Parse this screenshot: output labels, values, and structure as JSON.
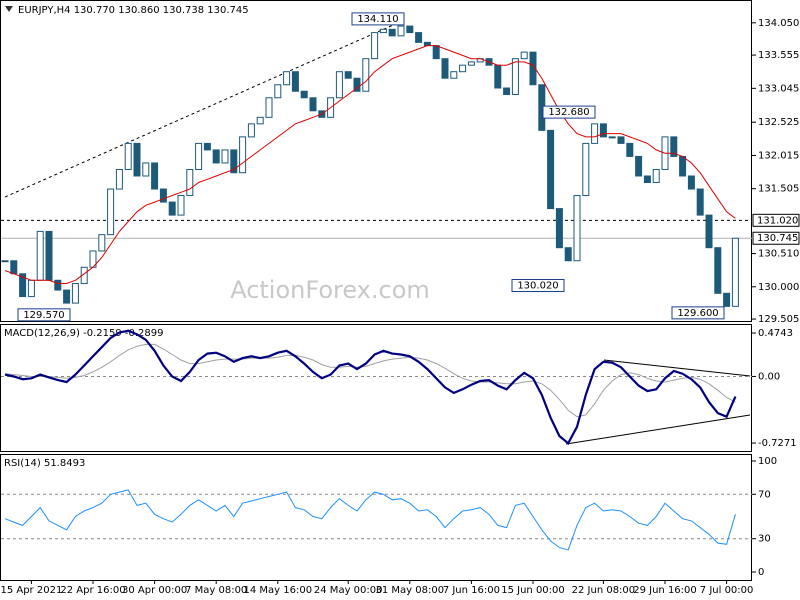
{
  "chart_data": [
    {
      "type": "candlestick",
      "title": "EURJPY,H4  130.770 130.860 130.738 130.745",
      "watermark": "ActionForex.com",
      "color": "#1d5a7a",
      "values": [
        130.4,
        130.2,
        129.85,
        130.1,
        130.85,
        130.1,
        129.95,
        129.75,
        130.05,
        130.3,
        130.55,
        130.8,
        131.5,
        131.8,
        132.2,
        131.7,
        131.9,
        131.5,
        131.3,
        131.1,
        131.4,
        131.8,
        132.2,
        132.1,
        131.9,
        132.1,
        131.75,
        132.3,
        132.5,
        132.6,
        132.9,
        133.1,
        133.3,
        133.0,
        132.9,
        132.7,
        132.6,
        132.9,
        133.3,
        133.2,
        133.0,
        133.5,
        133.9,
        133.95,
        133.85,
        134.0,
        133.9,
        133.75,
        133.7,
        133.5,
        133.2,
        133.3,
        133.4,
        133.45,
        133.5,
        133.4,
        133.05,
        132.95,
        133.5,
        133.6,
        133.1,
        132.4,
        131.2,
        130.6,
        130.4,
        131.4,
        132.2,
        132.5,
        132.3,
        132.3,
        132.2,
        132.0,
        131.7,
        131.6,
        131.8,
        132.3,
        132.0,
        131.7,
        131.5,
        131.1,
        130.6,
        129.9,
        129.7,
        130.745
      ],
      "ma_color": "#e00000",
      "ma_values": [
        130.25,
        130.2,
        130.15,
        130.1,
        130.1,
        130.1,
        130.05,
        130.05,
        130.1,
        130.2,
        130.3,
        130.45,
        130.65,
        130.85,
        131.0,
        131.15,
        131.25,
        131.3,
        131.35,
        131.4,
        131.45,
        131.5,
        131.6,
        131.65,
        131.7,
        131.75,
        131.8,
        131.9,
        132.0,
        132.1,
        132.2,
        132.3,
        132.4,
        132.5,
        132.55,
        132.6,
        132.65,
        132.75,
        132.85,
        132.95,
        133.05,
        133.15,
        133.3,
        133.4,
        133.5,
        133.55,
        133.6,
        133.65,
        133.7,
        133.7,
        133.65,
        133.6,
        133.55,
        133.5,
        133.5,
        133.45,
        133.4,
        133.4,
        133.45,
        133.45,
        133.4,
        133.2,
        132.95,
        132.7,
        132.5,
        132.35,
        132.3,
        132.3,
        132.35,
        132.35,
        132.35,
        132.3,
        132.25,
        132.2,
        132.1,
        132.05,
        132.05,
        132.0,
        131.9,
        131.75,
        131.55,
        131.35,
        131.15,
        131.05
      ],
      "ylim": [
        129.46,
        134.4
      ],
      "yticks": [
        {
          "value": 129.505,
          "label": "129.505"
        },
        {
          "value": 130.0,
          "label": "130.000"
        },
        {
          "value": 130.51,
          "label": "130.510"
        },
        {
          "value": 131.505,
          "label": "131.505"
        },
        {
          "value": 132.015,
          "label": "132.015"
        },
        {
          "value": 132.525,
          "label": "132.525"
        },
        {
          "value": 133.045,
          "label": "133.045"
        },
        {
          "value": 133.555,
          "label": "133.555"
        },
        {
          "value": 134.05,
          "label": "134.050"
        }
      ],
      "levels": [
        {
          "value": 131.02,
          "label": "131.020"
        },
        {
          "value": 130.745,
          "label": "130.745"
        }
      ],
      "annotations": [
        {
          "value": 134.11,
          "label": "134.110"
        },
        {
          "value": 132.68,
          "label": "132.680"
        },
        {
          "value": 130.02,
          "label": "130.020"
        },
        {
          "value": 129.6,
          "label": "129.600"
        },
        {
          "value": 129.57,
          "label": "129.570"
        }
      ]
    },
    {
      "type": "line",
      "title": "MACD(12,26,9) -0.2159 -0.2899",
      "series": [
        {
          "color": "#000080",
          "values": [
            0.02,
            0.0,
            -0.03,
            -0.02,
            0.02,
            -0.01,
            -0.04,
            -0.06,
            0.02,
            0.12,
            0.22,
            0.32,
            0.42,
            0.48,
            0.5,
            0.46,
            0.4,
            0.28,
            0.12,
            0.0,
            -0.05,
            0.05,
            0.18,
            0.25,
            0.26,
            0.22,
            0.16,
            0.2,
            0.22,
            0.2,
            0.22,
            0.26,
            0.28,
            0.22,
            0.14,
            0.05,
            -0.02,
            0.02,
            0.12,
            0.14,
            0.08,
            0.14,
            0.24,
            0.28,
            0.25,
            0.24,
            0.22,
            0.16,
            0.08,
            -0.02,
            -0.12,
            -0.18,
            -0.14,
            -0.09,
            -0.05,
            -0.04,
            -0.1,
            -0.14,
            -0.04,
            0.04,
            -0.02,
            -0.2,
            -0.45,
            -0.65,
            -0.73,
            -0.55,
            -0.2,
            0.08,
            0.16,
            0.15,
            0.1,
            0.0,
            -0.1,
            -0.16,
            -0.14,
            -0.02,
            0.06,
            0.03,
            -0.03,
            -0.12,
            -0.28,
            -0.4,
            -0.44,
            -0.22
          ]
        },
        {
          "color": "#a0a0a0",
          "values": [
            0.03,
            0.02,
            0.01,
            0.0,
            0.0,
            0.0,
            -0.01,
            -0.02,
            -0.01,
            0.01,
            0.05,
            0.1,
            0.16,
            0.23,
            0.29,
            0.33,
            0.35,
            0.35,
            0.3,
            0.24,
            0.18,
            0.14,
            0.14,
            0.16,
            0.18,
            0.19,
            0.19,
            0.19,
            0.2,
            0.2,
            0.2,
            0.21,
            0.23,
            0.23,
            0.21,
            0.18,
            0.13,
            0.1,
            0.1,
            0.11,
            0.1,
            0.11,
            0.14,
            0.17,
            0.19,
            0.2,
            0.21,
            0.2,
            0.18,
            0.14,
            0.09,
            0.03,
            -0.02,
            -0.05,
            -0.06,
            -0.06,
            -0.07,
            -0.08,
            -0.08,
            -0.06,
            -0.05,
            -0.08,
            -0.15,
            -0.25,
            -0.37,
            -0.44,
            -0.42,
            -0.3,
            -0.15,
            -0.05,
            0.02,
            0.04,
            0.02,
            -0.02,
            -0.05,
            -0.06,
            -0.04,
            -0.02,
            -0.01,
            -0.03,
            -0.08,
            -0.15,
            -0.23,
            -0.28
          ]
        }
      ],
      "ylim": [
        -0.825,
        0.562
      ],
      "yticks": [
        {
          "value": -0.7271,
          "label": "-0.7271"
        },
        {
          "value": 0,
          "label": "0.00"
        },
        0.4743
      ],
      "levels": [
        0
      ]
    },
    {
      "type": "line",
      "title": "RSI(14) 51.8493",
      "color": "#1e90ff",
      "categories": [
        null,
        null,
        null,
        "15 Apr 2021",
        null,
        null,
        null,
        null,
        null,
        null,
        "22 Apr 16:00",
        null,
        null,
        null,
        null,
        null,
        null,
        "30 Apr 00:00",
        null,
        null,
        null,
        null,
        null,
        null,
        "7 May 08:00",
        null,
        null,
        null,
        null,
        null,
        null,
        "14 May 16:00",
        null,
        null,
        null,
        null,
        null,
        null,
        null,
        "24 May 00:00",
        null,
        null,
        null,
        null,
        null,
        null,
        "31 May 08:00",
        null,
        null,
        null,
        null,
        null,
        null,
        "7 Jun 16:00",
        null,
        null,
        null,
        null,
        null,
        null,
        "15 Jun 00:00",
        null,
        null,
        null,
        null,
        null,
        null,
        null,
        "22 Jun 08:00",
        null,
        null,
        null,
        null,
        null,
        null,
        "29 Jun 16:00",
        null,
        null,
        null,
        null,
        null,
        null,
        "7 Jul 00:00",
        null
      ],
      "values": [
        48,
        45,
        42,
        50,
        58,
        46,
        42,
        38,
        50,
        55,
        58,
        62,
        70,
        72,
        74,
        60,
        62,
        52,
        48,
        45,
        52,
        60,
        65,
        60,
        55,
        60,
        50,
        62,
        64,
        66,
        68,
        70,
        72,
        58,
        56,
        50,
        48,
        58,
        66,
        60,
        55,
        65,
        72,
        70,
        65,
        66,
        62,
        55,
        56,
        50,
        40,
        48,
        55,
        56,
        58,
        52,
        42,
        40,
        60,
        62,
        50,
        38,
        28,
        22,
        20,
        42,
        58,
        62,
        55,
        56,
        55,
        50,
        44,
        42,
        50,
        62,
        55,
        48,
        46,
        40,
        34,
        26,
        25,
        52
      ],
      "ylim": [
        -7.2,
        105.4
      ],
      "yticks": [
        0,
        30,
        70,
        100
      ],
      "levels": [
        70,
        30
      ]
    }
  ]
}
